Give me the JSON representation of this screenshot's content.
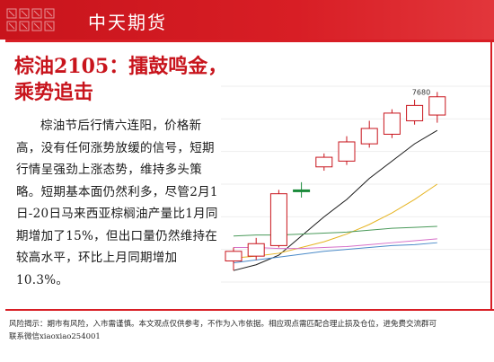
{
  "header": {
    "title": "中天期货"
  },
  "headline": {
    "line1": "棕油2105：擂鼓鸣金，",
    "line2": "乘势追击"
  },
  "body": {
    "text": "棕油节后行情六连阳，价格新高，没有任何涨势放缓的信号，短期行情呈强劲上涨态势，维持多头策略。短期基本面仍然利多，尽管2月1日-20日马来西亚棕榈油产量比1月同期增加了15%，但出口量仍然维持在较高水平，环比上月同期增加10.3%。"
  },
  "footer": {
    "line1": "风险揭示：期市有风险，入市需谨慎。本文观点仅供参考，不作为入市依据。相应观点需匹配合理止损及仓位，进免费交流群可",
    "line2": "联系微信xiaoxiao254001"
  },
  "colors": {
    "brand_red": "#d81e25",
    "up_candle": "#c8141c",
    "flat_candle": "#1a8a3a"
  },
  "chart_data": {
    "type": "candlestick",
    "annotation": "7680",
    "y_range": [
      6700,
      7720
    ],
    "candles": [
      {
        "open": 6810,
        "close": 6860,
        "high": 6880,
        "low": 6760,
        "dir": "up"
      },
      {
        "open": 6835,
        "close": 6900,
        "high": 6930,
        "low": 6815,
        "dir": "up"
      },
      {
        "open": 6890,
        "close": 7160,
        "high": 7180,
        "low": 6880,
        "dir": "up"
      },
      {
        "open": 7180,
        "close": 7175,
        "high": 7220,
        "low": 7140,
        "dir": "flat"
      },
      {
        "open": 7300,
        "close": 7350,
        "high": 7370,
        "low": 7280,
        "dir": "up"
      },
      {
        "open": 7330,
        "close": 7430,
        "high": 7460,
        "low": 7310,
        "dir": "up"
      },
      {
        "open": 7420,
        "close": 7500,
        "high": 7540,
        "low": 7400,
        "dir": "up"
      },
      {
        "open": 7470,
        "close": 7580,
        "high": 7600,
        "low": 7450,
        "dir": "up"
      },
      {
        "open": 7540,
        "close": 7620,
        "high": 7650,
        "low": 7520,
        "dir": "up"
      },
      {
        "open": 7570,
        "close": 7665,
        "high": 7690,
        "low": 7530,
        "dir": "up"
      }
    ],
    "ma_lines": [
      {
        "color": "#1a1a1a",
        "values": [
          6760,
          6790,
          6840,
          6940,
          7040,
          7130,
          7240,
          7330,
          7420,
          7490
        ]
      },
      {
        "color": "#e6b422",
        "values": [
          6825,
          6835,
          6850,
          6880,
          6910,
          6950,
          7000,
          7060,
          7130,
          7210
        ]
      },
      {
        "color": "#4a9a5a",
        "values": [
          6940,
          6945,
          6945,
          6950,
          6955,
          6960,
          6970,
          6980,
          6985,
          6990
        ]
      },
      {
        "color": "#d66fc8",
        "values": [
          6880,
          6880,
          6875,
          6875,
          6880,
          6885,
          6895,
          6905,
          6915,
          6925
        ]
      },
      {
        "color": "#4a8ac8",
        "values": [
          6800,
          6815,
          6830,
          6845,
          6860,
          6870,
          6880,
          6890,
          6895,
          6905
        ]
      }
    ]
  }
}
